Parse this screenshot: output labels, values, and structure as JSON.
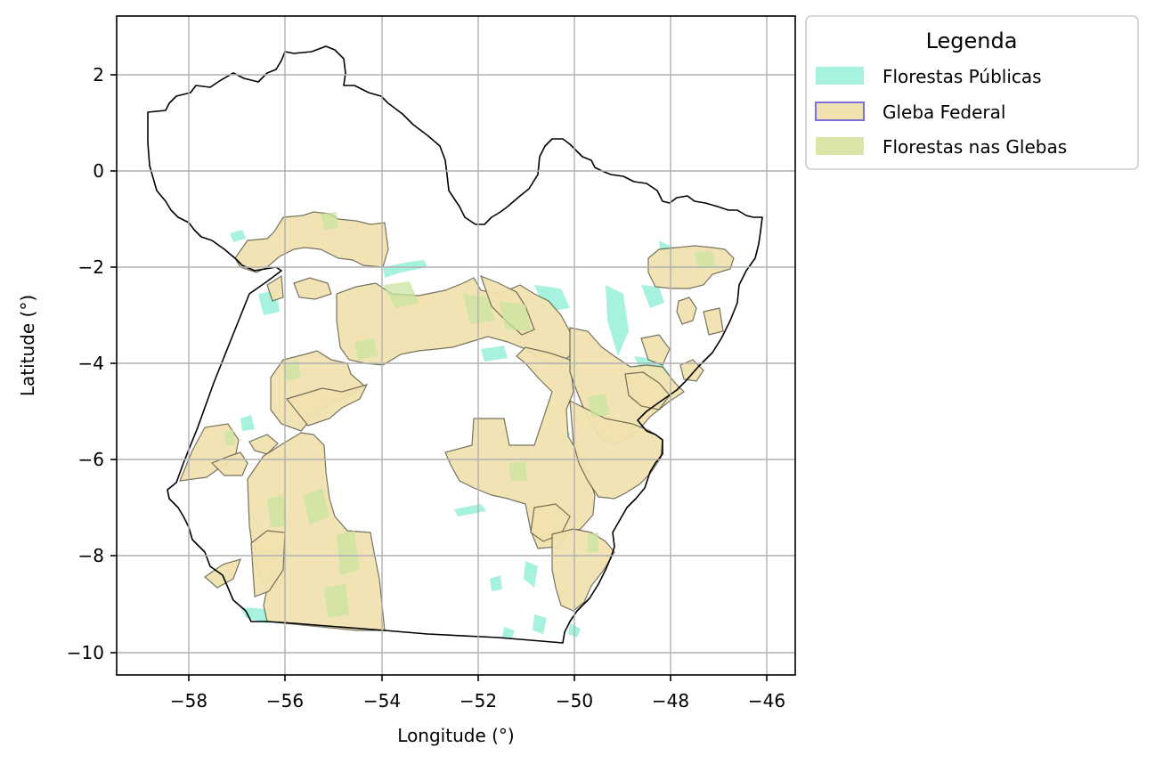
{
  "map": {
    "xlabel": "Longitude (°)",
    "ylabel": "Latitude (°)",
    "x_ticks": [
      -58,
      -56,
      -54,
      -52,
      -50,
      -48,
      -46
    ],
    "x_tick_labels": [
      "−58",
      "−56",
      "−54",
      "−52",
      "−50",
      "−48",
      "−46"
    ],
    "y_ticks": [
      2,
      0,
      -2,
      -4,
      -6,
      -8,
      -10
    ],
    "y_tick_labels": [
      "2",
      "0",
      "−2",
      "−4",
      "−6",
      "−8",
      "−10"
    ],
    "xlim": [
      -59.7,
      -45.5
    ],
    "ylim": [
      -10.5,
      3.2
    ],
    "grid": true
  },
  "legend": {
    "title": "Legenda",
    "placement": "outside-top-right",
    "items": [
      {
        "label": "Florestas Públicas",
        "fill": "#a6f2de",
        "stroke": "none"
      },
      {
        "label": "Gleba Federal",
        "fill": "#f0e1b0",
        "stroke": "#7b6fd8"
      },
      {
        "label": "Florestas nas Glebas",
        "fill": "#dae5a8",
        "stroke": "none"
      }
    ]
  },
  "colors": {
    "state_border": "#000000",
    "gleba_outline": "#4a4a3a",
    "grid": "#b0b0b0"
  }
}
